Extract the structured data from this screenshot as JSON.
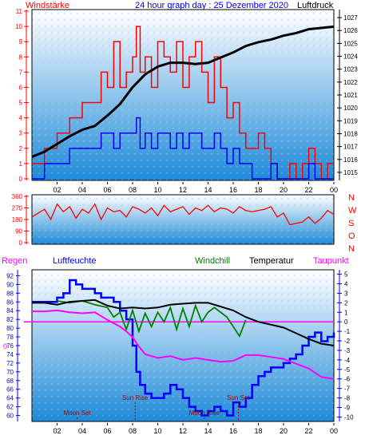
{
  "header": {
    "left_label": "Windstärke",
    "title": "24 hour graph day : 25 Dezember 2020",
    "right_label": "Luftdruck"
  },
  "colors": {
    "wind": "#ff0000",
    "gust": "#0000ff",
    "pressure": "#000000",
    "direction": "#ff0000",
    "humidity": "#0000ff",
    "windchill": "#008000",
    "temperature": "#000000",
    "dewpoint": "#ff00ff",
    "rain": "#ff00ff",
    "axis": "#0000ff",
    "bg_top": "#ffffff",
    "bg_bottom": "#1e8ad8"
  },
  "icons": [
    "sunrise-marker",
    "sunset-marker",
    "moonrise-marker",
    "moonset-marker"
  ],
  "bottom_legend": {
    "regen": "Regen",
    "luftfeuchte": "Luftfeuchte",
    "windchill": "Windchill",
    "temperatur": "Temperatur",
    "taupunkt": "Taupunkt"
  },
  "direction_labels": [
    "N",
    "W",
    "S",
    "O",
    "N"
  ],
  "chart_data": [
    {
      "type": "line",
      "name": "wind-and-pressure",
      "xlabel": "",
      "xlim": [
        0,
        24
      ],
      "x_ticks": [
        "02",
        "04",
        "06",
        "08",
        "10",
        "12",
        "14",
        "16",
        "18",
        "20",
        "22",
        "00"
      ],
      "left_axis": {
        "title": "Windstärke",
        "ylim": [
          0,
          11
        ],
        "ticks": [
          "0",
          "1",
          "2",
          "3",
          "4",
          "5",
          "6",
          "7",
          "8",
          "9",
          "10",
          "11"
        ]
      },
      "right_axis": {
        "title": "Luftdruck",
        "ylim": [
          1014.5,
          1027.5
        ],
        "ticks": [
          "1015",
          "1016",
          "1017",
          "1018",
          "1019",
          "1020",
          "1021",
          "1022",
          "1023",
          "1024",
          "1025",
          "1026",
          "1027"
        ]
      },
      "series": [
        {
          "name": "Windstärke",
          "axis": "left",
          "x": [
            0,
            1,
            2,
            3,
            4,
            5,
            5.5,
            6,
            6.5,
            7,
            7.5,
            8,
            8.3,
            8.6,
            9,
            9.5,
            10,
            10.5,
            11,
            11.5,
            12,
            12.5,
            13,
            13.5,
            14,
            14.5,
            15,
            15.5,
            16,
            16.5,
            17,
            17.5,
            18,
            18.5,
            19,
            19.5,
            20,
            20.5,
            21,
            21.5,
            22,
            22.5,
            23,
            23.5,
            24
          ],
          "values": [
            1,
            2,
            3,
            4,
            5,
            5,
            7,
            6,
            9,
            6,
            7,
            8,
            10,
            7,
            8,
            6,
            9,
            8,
            7,
            9,
            6,
            8,
            9,
            7,
            5,
            8,
            6,
            4,
            5,
            3,
            2,
            2,
            3,
            2,
            1,
            0,
            0,
            1,
            0,
            1,
            2,
            1,
            0,
            1,
            1
          ]
        },
        {
          "name": "Böen",
          "axis": "left",
          "x": [
            0,
            1,
            2,
            3,
            4,
            5,
            5.5,
            6,
            6.5,
            7,
            7.5,
            8,
            8.3,
            8.6,
            9,
            9.5,
            10,
            10.5,
            11,
            11.5,
            12,
            12.5,
            13,
            13.5,
            14,
            14.5,
            15,
            15.5,
            16,
            16.5,
            17,
            17.5,
            18,
            18.5,
            19,
            19.5,
            20,
            20.5,
            21,
            21.5,
            22,
            22.5,
            23,
            23.5,
            24
          ],
          "values": [
            0,
            1,
            1,
            2,
            2,
            2,
            3,
            3,
            2,
            3,
            3,
            3,
            4,
            2,
            3,
            2,
            3,
            3,
            2,
            3,
            2,
            3,
            3,
            2,
            2,
            3,
            2,
            1,
            2,
            1,
            1,
            0,
            0,
            0,
            1,
            0,
            0,
            0,
            0,
            0,
            1,
            0,
            0,
            0,
            0
          ]
        },
        {
          "name": "Luftdruck",
          "axis": "right",
          "x": [
            0,
            1,
            2,
            3,
            4,
            5,
            6,
            7,
            8,
            9,
            10,
            11,
            12,
            13,
            14,
            15,
            16,
            17,
            18,
            19,
            20,
            21,
            22,
            23,
            24
          ],
          "values": [
            1016.2,
            1016.6,
            1017.2,
            1017.8,
            1018.3,
            1018.6,
            1019.4,
            1020.3,
            1021.6,
            1022.6,
            1023.2,
            1023.5,
            1023.5,
            1023.4,
            1023.5,
            1023.9,
            1024.3,
            1024.8,
            1025.1,
            1025.3,
            1025.6,
            1025.8,
            1026.1,
            1026.2,
            1026.3
          ]
        }
      ]
    },
    {
      "type": "line",
      "name": "wind-direction",
      "xlim": [
        0,
        24
      ],
      "ylim": [
        0,
        360
      ],
      "y_ticks": [
        "0",
        "90",
        "180",
        "270",
        "360"
      ],
      "series": [
        {
          "name": "Windrichtung",
          "x": [
            0,
            0.5,
            1,
            1.5,
            2,
            2.5,
            3,
            3.5,
            4,
            4.5,
            5,
            5.5,
            6,
            6.5,
            7,
            7.5,
            8,
            8.5,
            9,
            9.5,
            10,
            10.5,
            11,
            11.5,
            12,
            12.5,
            13,
            13.5,
            14,
            14.5,
            15,
            15.5,
            16,
            16.5,
            17,
            17.5,
            18,
            18.5,
            19,
            19.5,
            20,
            20.5,
            21,
            21.5,
            22,
            22.5,
            23,
            23.5,
            24
          ],
          "values": [
            200,
            230,
            260,
            180,
            300,
            240,
            280,
            190,
            260,
            230,
            300,
            180,
            270,
            240,
            250,
            200,
            280,
            260,
            230,
            270,
            210,
            290,
            240,
            260,
            280,
            220,
            270,
            250,
            290,
            240,
            270,
            260,
            230,
            280,
            250,
            240,
            250,
            260,
            280,
            200,
            230,
            140,
            150,
            160,
            200,
            150,
            190,
            250,
            220
          ]
        }
      ]
    },
    {
      "type": "line",
      "name": "humidity-and-temperatures",
      "xlim": [
        0,
        24
      ],
      "left_axis": {
        "title": "Luftfeuchte",
        "ylim": [
          59,
          93
        ],
        "ticks": [
          "60",
          "62",
          "64",
          "66",
          "68",
          "70",
          "72",
          "74",
          "76",
          "78",
          "80",
          "82",
          "84",
          "86",
          "88",
          "90",
          "92"
        ]
      },
      "right_axis": {
        "title": "Temperatur",
        "ylim": [
          -10.3,
          5.3
        ],
        "ticks": [
          "5",
          "4",
          "3",
          "2",
          "1",
          "0",
          "-1",
          "-2",
          "-3",
          "-4",
          "-5",
          "-6",
          "-7",
          "-8",
          "-9",
          "-10"
        ]
      },
      "rain_axis": {
        "title": "Regen",
        "tick": "0"
      },
      "series": [
        {
          "name": "Luftfeuchte",
          "axis": "left",
          "x": [
            0,
            1,
            2,
            2.5,
            3,
            3.5,
            4,
            5,
            5.5,
            6,
            6.5,
            7,
            7.5,
            8,
            8.3,
            8.6,
            9,
            9.5,
            10,
            10.5,
            11,
            11.5,
            12,
            12.5,
            13,
            13.5,
            14,
            14.5,
            15,
            15.5,
            16,
            16.5,
            17,
            17.5,
            18,
            18.5,
            19,
            19.5,
            20,
            20.5,
            21,
            21.5,
            22,
            22.5,
            23,
            23.5,
            24
          ],
          "values": [
            86,
            86,
            87,
            88,
            91,
            90,
            89,
            88,
            87,
            87,
            86,
            84,
            82,
            76,
            70,
            67,
            65,
            64,
            64,
            65,
            67,
            66,
            64,
            62,
            61,
            60,
            61,
            62,
            61,
            60,
            63,
            62,
            64,
            67,
            69,
            70,
            71,
            71,
            72,
            73,
            74,
            76,
            78,
            79,
            77,
            78,
            79
          ]
        },
        {
          "name": "Windchill",
          "axis": "right",
          "x": [
            2,
            3,
            4,
            5,
            6,
            6.5,
            7,
            7.5,
            8,
            8.5,
            9,
            9.5,
            10,
            10.5,
            11,
            11.5,
            12,
            12.5,
            13,
            13.5,
            14,
            14.5,
            15,
            15.5,
            16,
            16.5,
            17
          ],
          "values": [
            2.2,
            2.0,
            2.2,
            1.8,
            1.5,
            0.5,
            1.0,
            -0.8,
            1.2,
            -1.0,
            0.9,
            -0.5,
            1.0,
            0.0,
            1.5,
            -0.8,
            1.4,
            -0.5,
            1.7,
            0.0,
            1.0,
            1.5,
            1.0,
            0.5,
            -0.5,
            -1.5,
            0.2
          ]
        },
        {
          "name": "Temperatur",
          "axis": "right",
          "x": [
            0,
            1,
            2,
            3,
            4,
            5,
            6,
            7,
            8,
            9,
            10,
            11,
            12,
            13,
            14,
            15,
            16,
            17,
            18,
            19,
            20,
            21,
            22,
            23,
            24
          ],
          "values": [
            2.0,
            2.0,
            1.8,
            2.1,
            2.2,
            2.3,
            1.7,
            1.4,
            1.5,
            1.4,
            1.5,
            1.8,
            1.9,
            2.0,
            2.0,
            1.6,
            1.2,
            0.5,
            0.0,
            -0.3,
            -0.6,
            -1.2,
            -1.8,
            -2.3,
            -2.5
          ]
        },
        {
          "name": "Taupunkt",
          "axis": "right",
          "x": [
            0,
            1,
            2,
            3,
            4,
            5,
            6,
            7,
            7.5,
            8,
            8.5,
            9,
            10,
            11,
            12,
            13,
            14,
            15,
            16,
            17,
            18,
            19,
            20,
            21,
            22,
            23,
            24
          ],
          "values": [
            1.1,
            1.1,
            1.2,
            1.0,
            0.9,
            1.0,
            0.2,
            -0.5,
            -1.0,
            -1.6,
            -2.6,
            -3.4,
            -3.8,
            -3.6,
            -4.0,
            -3.8,
            -4.0,
            -4.2,
            -4.1,
            -3.5,
            -3.5,
            -3.7,
            -3.9,
            -4.4,
            -4.9,
            -5.8,
            -6.0
          ]
        },
        {
          "name": "Regen",
          "axis": "rain",
          "x": [
            0,
            24
          ],
          "values": [
            0,
            0
          ]
        }
      ],
      "annotations": [
        {
          "label": "Moon Set",
          "x": 3.6
        },
        {
          "label": "Sun Rise",
          "x": 8.2
        },
        {
          "label": "Moon Rise",
          "x": 13.7
        },
        {
          "label": "Sun Set",
          "x": 16.4
        }
      ]
    }
  ]
}
